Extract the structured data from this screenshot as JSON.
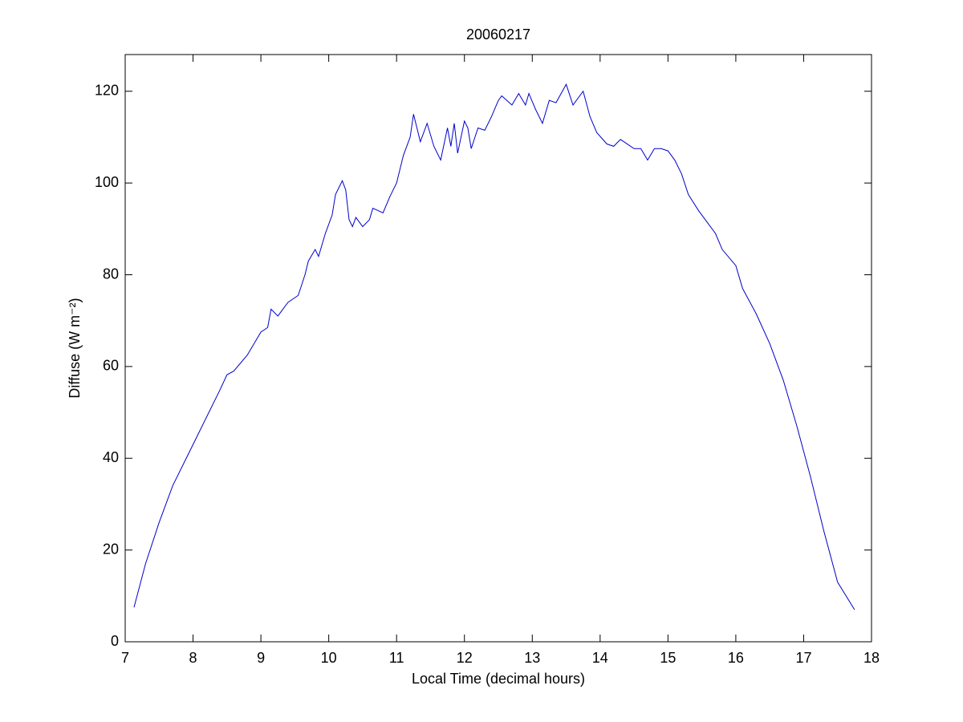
{
  "chart_data": {
    "type": "line",
    "title": "20060217",
    "xlabel": "Local Time (decimal hours)",
    "ylabel": "Diffuse (W m⁻²)",
    "xlim": [
      7,
      18
    ],
    "xticks": [
      7,
      8,
      9,
      10,
      11,
      12,
      13,
      14,
      15,
      16,
      17,
      18
    ],
    "ylim": [
      0,
      128
    ],
    "yticks": [
      0,
      20,
      40,
      60,
      80,
      100,
      120
    ],
    "grid": false,
    "x": [
      7.13,
      7.3,
      7.5,
      7.7,
      7.9,
      8.0,
      8.2,
      8.4,
      8.5,
      8.6,
      8.8,
      9.0,
      9.1,
      9.15,
      9.25,
      9.4,
      9.55,
      9.65,
      9.7,
      9.8,
      9.85,
      9.95,
      10.05,
      10.1,
      10.2,
      10.25,
      10.3,
      10.35,
      10.4,
      10.5,
      10.6,
      10.65,
      10.8,
      10.9,
      11.0,
      11.1,
      11.2,
      11.25,
      11.3,
      11.35,
      11.45,
      11.55,
      11.65,
      11.75,
      11.8,
      11.85,
      11.9,
      12.0,
      12.05,
      12.1,
      12.2,
      12.3,
      12.4,
      12.5,
      12.55,
      12.7,
      12.8,
      12.9,
      12.95,
      13.05,
      13.15,
      13.25,
      13.35,
      13.5,
      13.6,
      13.75,
      13.85,
      13.95,
      14.1,
      14.2,
      14.3,
      14.5,
      14.6,
      14.7,
      14.8,
      14.9,
      15.0,
      15.1,
      15.2,
      15.3,
      15.45,
      15.6,
      15.7,
      15.8,
      16.0,
      16.1,
      16.3,
      16.5,
      16.7,
      16.9,
      17.1,
      17.3,
      17.5,
      17.75
    ],
    "series": [
      {
        "color": "#0000cc",
        "values": [
          7.5,
          17,
          26,
          34,
          40,
          43,
          49,
          55,
          58.2,
          59,
          62.5,
          67.5,
          68.5,
          72.5,
          71,
          74,
          75.5,
          80,
          83,
          85.5,
          84,
          89,
          93,
          97.5,
          100.5,
          98.5,
          92,
          90.5,
          92.5,
          90.5,
          92,
          94.5,
          93.5,
          97,
          100,
          106,
          110,
          115,
          112,
          109,
          113,
          108,
          105,
          112,
          108,
          113,
          106.5,
          113.5,
          112,
          107.5,
          112,
          111.5,
          114.5,
          118,
          119,
          117,
          119.5,
          117,
          119.5,
          116,
          113,
          118,
          117.5,
          121.5,
          117,
          120,
          114.5,
          111,
          108.5,
          108,
          109.5,
          107.5,
          107.5,
          105,
          107.5,
          107.5,
          107,
          105,
          102,
          97.5,
          94,
          91,
          89,
          85.5,
          82,
          77,
          71.5,
          65,
          57,
          47,
          36,
          24,
          13,
          7
        ]
      }
    ]
  }
}
